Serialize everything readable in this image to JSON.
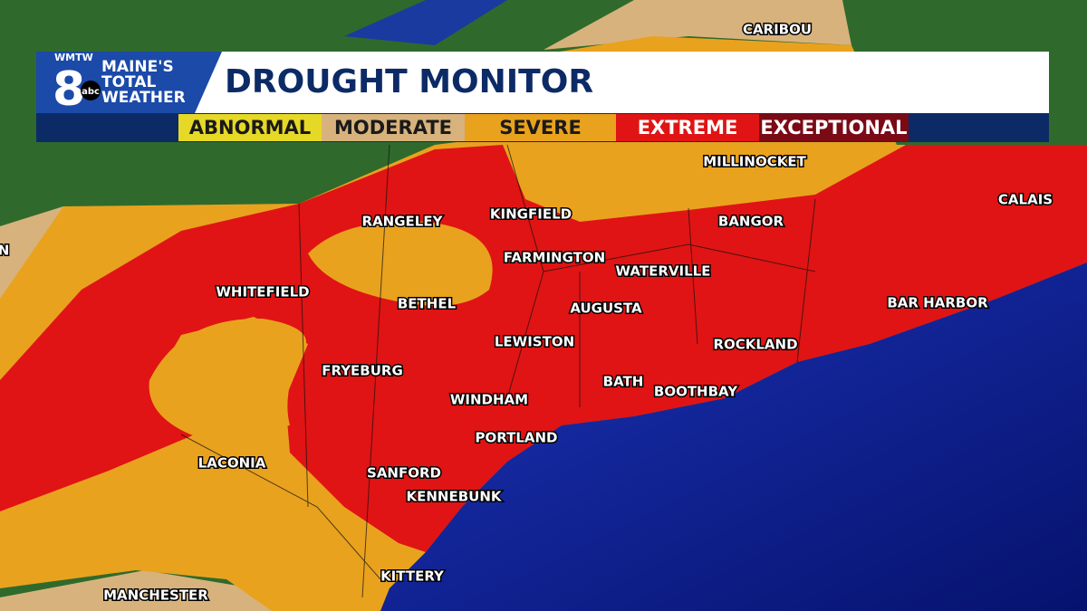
{
  "header": {
    "station": "WMTW",
    "channel": "8",
    "network": "abc",
    "brand": [
      "MAINE'S",
      "TOTAL",
      "WEATHER"
    ],
    "title": "DROUGHT MONITOR"
  },
  "legend": [
    {
      "label": "ABNORMAL",
      "color": "#e6d826"
    },
    {
      "label": "MODERATE",
      "color": "#d8b27c"
    },
    {
      "label": "SEVERE",
      "color": "#e9a21e"
    },
    {
      "label": "EXTREME",
      "color": "#e01414"
    },
    {
      "label": "EXCEPTIONAL",
      "color": "#7a0a16"
    }
  ],
  "cities": [
    "CARIBOU",
    "MILLINOCKET",
    "CALAIS",
    "RANGELEY",
    "KINGFIELD",
    "BANGOR",
    "FARMINGTON",
    "WATERVILLE",
    "WHITEFIELD",
    "BETHEL",
    "AUGUSTA",
    "BAR HARBOR",
    "LEWISTON",
    "ROCKLAND",
    "FRYEBURG",
    "BATH",
    "BOOTHBAY",
    "WINDHAM",
    "PORTLAND",
    "LACONIA",
    "SANFORD",
    "KENNEBUNK",
    "KITTERY",
    "MANCHESTER",
    "N"
  ]
}
